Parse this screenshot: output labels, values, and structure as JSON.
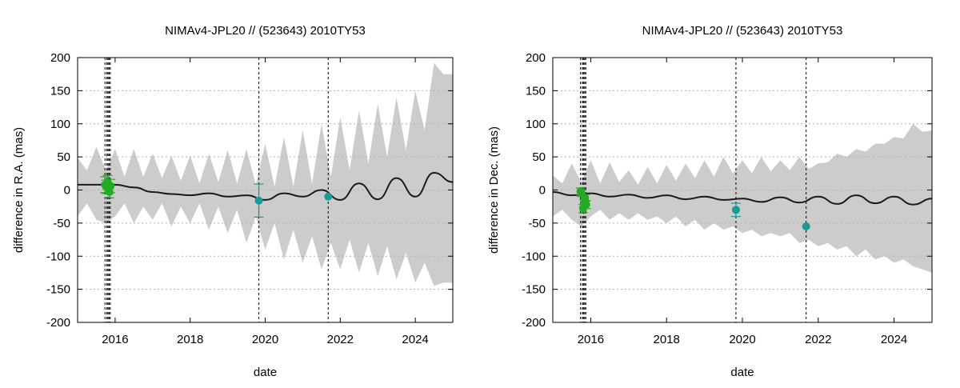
{
  "chart_data": [
    {
      "type": "line",
      "title": "NIMAv4-JPL20 // (523643) 2010TY53",
      "xlabel": "date",
      "ylabel": "difference in R.A. (mas)",
      "xlim": [
        2015.0,
        2025.0
      ],
      "ylim": [
        -200,
        200
      ],
      "xticks": [
        2016,
        2018,
        2020,
        2022,
        2024
      ],
      "xtick_labels": [
        "2016",
        "2018",
        "2020",
        "2022",
        "2024"
      ],
      "yticks": [
        -200,
        -150,
        -100,
        -50,
        0,
        50,
        100,
        150,
        200
      ],
      "ytick_labels": [
        "-200",
        "-150",
        "-100",
        "-50",
        "0",
        "50",
        "100",
        "150",
        "200"
      ],
      "grid": true,
      "colors": {
        "band": "#cccccc",
        "line": "#1a1a1a",
        "green": "#22aa22",
        "teal": "#1a9a96",
        "grid": "#b0b0b0"
      },
      "vlines": [
        2015.73,
        2015.78,
        2015.81,
        2015.84,
        2015.87,
        2019.83,
        2021.68
      ],
      "series": [
        {
          "role": "uncertainty-band",
          "x": [
            2015.0,
            2015.25,
            2015.5,
            2015.75,
            2016.0,
            2016.25,
            2016.5,
            2016.75,
            2017.0,
            2017.25,
            2017.5,
            2017.75,
            2018.0,
            2018.25,
            2018.5,
            2018.75,
            2019.0,
            2019.25,
            2019.5,
            2019.75,
            2020.0,
            2020.25,
            2020.5,
            2020.75,
            2021.0,
            2021.25,
            2021.5,
            2021.75,
            2022.0,
            2022.25,
            2022.5,
            2022.75,
            2023.0,
            2023.25,
            2023.5,
            2023.75,
            2024.0,
            2024.25,
            2024.5,
            2024.75,
            2025.0
          ],
          "upper": [
            48,
            30,
            65,
            30,
            62,
            20,
            62,
            20,
            55,
            18,
            52,
            14,
            52,
            10,
            55,
            12,
            60,
            10,
            62,
            8,
            70,
            5,
            80,
            5,
            90,
            10,
            100,
            20,
            110,
            30,
            120,
            40,
            130,
            50,
            140,
            60,
            150,
            90,
            192,
            175,
            175
          ],
          "lower": [
            -40,
            -20,
            -45,
            -50,
            -40,
            -20,
            -50,
            -25,
            -45,
            -20,
            -55,
            -25,
            -50,
            -20,
            -60,
            -25,
            -65,
            -30,
            -80,
            -40,
            -90,
            -50,
            -105,
            -60,
            -110,
            -70,
            -120,
            -80,
            -120,
            -75,
            -125,
            -80,
            -130,
            -85,
            -135,
            -95,
            -140,
            -110,
            -145,
            -140,
            -140
          ]
        },
        {
          "role": "difference-curve",
          "x": [
            2015.0,
            2015.5,
            2016.0,
            2016.5,
            2017.0,
            2017.5,
            2018.0,
            2018.5,
            2019.0,
            2019.5,
            2020.0,
            2020.5,
            2021.0,
            2021.5,
            2022.0,
            2022.5,
            2023.0,
            2023.5,
            2024.0,
            2024.5,
            2025.0
          ],
          "y": [
            8,
            8,
            8,
            4,
            -3,
            -6,
            -8,
            -5,
            -10,
            -8,
            -15,
            -5,
            -10,
            0,
            -15,
            10,
            -14,
            18,
            -10,
            26,
            12
          ]
        },
        {
          "role": "observations",
          "color": "green",
          "x": [
            2015.73,
            2015.76,
            2015.8,
            2015.82,
            2015.85,
            2015.88
          ],
          "y": [
            8,
            5,
            12,
            2,
            -3,
            6
          ],
          "err": [
            12,
            10,
            10,
            8,
            9,
            10
          ]
        },
        {
          "role": "observations",
          "color": "teal",
          "x": [
            2019.83,
            2021.68
          ],
          "y": [
            -16,
            -10
          ],
          "err": [
            25,
            0
          ]
        }
      ]
    },
    {
      "type": "line",
      "title": "NIMAv4-JPL20 // (523643) 2010TY53",
      "xlabel": "date",
      "ylabel": "difference in Dec. (mas)",
      "xlim": [
        2015.0,
        2025.0
      ],
      "ylim": [
        -200,
        200
      ],
      "xticks": [
        2016,
        2018,
        2020,
        2022,
        2024
      ],
      "xtick_labels": [
        "2016",
        "2018",
        "2020",
        "2022",
        "2024"
      ],
      "yticks": [
        -200,
        -150,
        -100,
        -50,
        0,
        50,
        100,
        150,
        200
      ],
      "ytick_labels": [
        "-200",
        "-150",
        "-100",
        "-50",
        "0",
        "50",
        "100",
        "150",
        "200"
      ],
      "grid": true,
      "colors": {
        "band": "#cccccc",
        "line": "#1a1a1a",
        "green": "#22aa22",
        "teal": "#1a9a96",
        "grid": "#b0b0b0"
      },
      "vlines": [
        2015.73,
        2015.78,
        2015.81,
        2015.84,
        2015.87,
        2019.83,
        2021.68
      ],
      "series": [
        {
          "role": "uncertainty-band",
          "x": [
            2015.0,
            2015.25,
            2015.5,
            2015.75,
            2016.0,
            2016.25,
            2016.5,
            2016.75,
            2017.0,
            2017.25,
            2017.5,
            2017.75,
            2018.0,
            2018.25,
            2018.5,
            2018.75,
            2019.0,
            2019.25,
            2019.5,
            2019.75,
            2020.0,
            2020.25,
            2020.5,
            2020.75,
            2021.0,
            2021.25,
            2021.5,
            2021.75,
            2022.0,
            2022.25,
            2022.5,
            2022.75,
            2023.0,
            2023.25,
            2023.5,
            2023.75,
            2024.0,
            2024.25,
            2024.5,
            2024.75,
            2025.0
          ],
          "upper": [
            22,
            10,
            40,
            12,
            45,
            10,
            42,
            12,
            30,
            8,
            35,
            10,
            38,
            14,
            40,
            18,
            45,
            20,
            50,
            25,
            45,
            25,
            50,
            28,
            45,
            30,
            50,
            32,
            40,
            42,
            55,
            50,
            62,
            58,
            70,
            70,
            80,
            78,
            100,
            88,
            90
          ],
          "lower": [
            -40,
            -30,
            -45,
            -55,
            -40,
            -30,
            -45,
            -35,
            -45,
            -35,
            -45,
            -40,
            -50,
            -40,
            -55,
            -45,
            -60,
            -50,
            -60,
            -55,
            -65,
            -60,
            -70,
            -65,
            -70,
            -65,
            -80,
            -75,
            -85,
            -80,
            -90,
            -85,
            -100,
            -90,
            -105,
            -100,
            -110,
            -105,
            -115,
            -120,
            -125
          ]
        },
        {
          "role": "difference-curve",
          "x": [
            2015.0,
            2015.5,
            2016.0,
            2016.5,
            2017.0,
            2017.5,
            2018.0,
            2018.5,
            2019.0,
            2019.5,
            2020.0,
            2020.5,
            2021.0,
            2021.5,
            2022.0,
            2022.5,
            2023.0,
            2023.5,
            2024.0,
            2024.5,
            2025.0
          ],
          "y": [
            -3,
            -8,
            -5,
            -10,
            -7,
            -12,
            -8,
            -14,
            -10,
            -15,
            -13,
            -18,
            -11,
            -19,
            -10,
            -21,
            -8,
            -20,
            -10,
            -22,
            -13
          ]
        },
        {
          "role": "observations",
          "color": "green",
          "x": [
            2015.73,
            2015.76,
            2015.8,
            2015.82,
            2015.85,
            2015.88
          ],
          "y": [
            -2,
            -5,
            -28,
            -20,
            -12,
            -22
          ],
          "err": [
            5,
            5,
            6,
            5,
            5,
            6
          ]
        },
        {
          "role": "observations",
          "color": "teal",
          "x": [
            2019.83,
            2021.68
          ],
          "y": [
            -30,
            -55
          ],
          "err": [
            10,
            0
          ]
        }
      ]
    }
  ]
}
